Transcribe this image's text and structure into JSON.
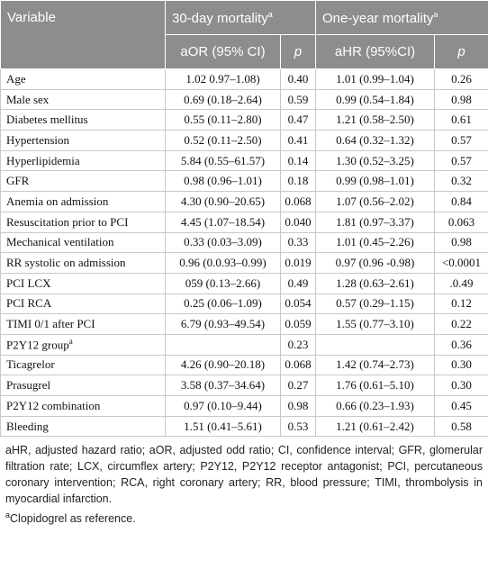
{
  "table": {
    "header": {
      "variable": "Variable",
      "group1": "30-day mortality",
      "group1_sup": "a",
      "group2": "One-year mortality",
      "group2_sup": "a",
      "sub": [
        "aOR (95% CI)",
        "p",
        "aHR (95%CI)",
        "p"
      ]
    },
    "rows": [
      {
        "variable": "Age",
        "cells": [
          "1.02 0.97–1.08)",
          "0.40",
          "1.01 (0.99–1.04)",
          "0.26"
        ]
      },
      {
        "variable": "Male sex",
        "cells": [
          "0.69 (0.18–2.64)",
          "0.59",
          "0.99 (0.54–1.84)",
          "0.98"
        ]
      },
      {
        "variable": "Diabetes mellitus",
        "cells": [
          "0.55 (0.11–2.80)",
          "0.47",
          "1.21 (0.58–2.50)",
          "0.61"
        ]
      },
      {
        "variable": "Hypertension",
        "cells": [
          "0.52 (0.11–2.50)",
          "0.41",
          "0.64 (0.32–1.32)",
          "0.57"
        ]
      },
      {
        "variable": "Hyperlipidemia",
        "cells": [
          "5.84 (0.55–61.57)",
          "0.14",
          "1.30 (0.52–3.25)",
          "0.57"
        ]
      },
      {
        "variable": "GFR",
        "cells": [
          "0.98 (0.96–1.01)",
          "0.18",
          "0.99 (0.98–1.01)",
          "0.32"
        ]
      },
      {
        "variable": "Anemia on admission",
        "cells": [
          "4.30 (0.90–20.65)",
          "0.068",
          "1.07 (0.56–2.02)",
          "0.84"
        ]
      },
      {
        "variable": "Resuscitation prior to PCI",
        "cells": [
          "4.45 (1.07–18.54)",
          "0.040",
          "1.81 (0.97–3.37)",
          "0.063"
        ]
      },
      {
        "variable": "Mechanical ventilation",
        "cells": [
          "0.33 (0.03–3.09)",
          "0.33",
          "1.01 (0.45–2.26)",
          "0.98"
        ]
      },
      {
        "variable": "RR systolic on admission",
        "cells": [
          "0.96 (0.0.93–0.99)",
          "0.019",
          "0.97 (0.96 -0.98)",
          "<0.0001"
        ]
      },
      {
        "variable": "PCI LCX",
        "cells": [
          "059 (0.13–2.66)",
          "0.49",
          "1.28 (0.63–2.61)",
          ".0.49"
        ]
      },
      {
        "variable": "PCI RCA",
        "cells": [
          "0.25 (0.06–1.09)",
          "0.054",
          "0.57 (0.29–1.15)",
          "0.12"
        ]
      },
      {
        "variable": "TIMI 0/1 after PCI",
        "cells": [
          "6.79 (0.93–49.54)",
          "0.059",
          "1.55 (0.77–3.10)",
          "0.22"
        ]
      },
      {
        "variable": "P2Y12 group",
        "sup": "a",
        "cells": [
          null,
          "0.23",
          null,
          "0.36"
        ]
      },
      {
        "variable": "Ticagrelor",
        "cells": [
          "4.26 (0.90–20.18)",
          "0.068",
          "1.42 (0.74–2.73)",
          "0.30"
        ]
      },
      {
        "variable": "Prasugrel",
        "cells": [
          "3.58 (0.37–34.64)",
          "0.27",
          "1.76 (0.61–5.10)",
          "0.30"
        ]
      },
      {
        "variable": "P2Y12 combination",
        "cells": [
          "0.97 (0.10–9.44)",
          "0.98",
          "0.66 (0.23–1.93)",
          "0.45"
        ]
      },
      {
        "variable": "Bleeding",
        "cells": [
          "1.51 (0.41–5.61)",
          "0.53",
          "1.21 (0.61–2.42)",
          "0.58"
        ]
      }
    ]
  },
  "footnote": {
    "abbreviations": "aHR, adjusted hazard ratio; aOR, adjusted odd ratio; CI, confidence interval; GFR, glomerular filtration rate; LCX, circumflex artery; P2Y12, P2Y12 receptor antagonist; PCI, percutaneous coronary intervention; RCA, right coronary artery; RR, blood pressure; TIMI, thrombolysis in myocardial infarction.",
    "note_sup": "a",
    "note": "Clopidogrel as reference."
  }
}
